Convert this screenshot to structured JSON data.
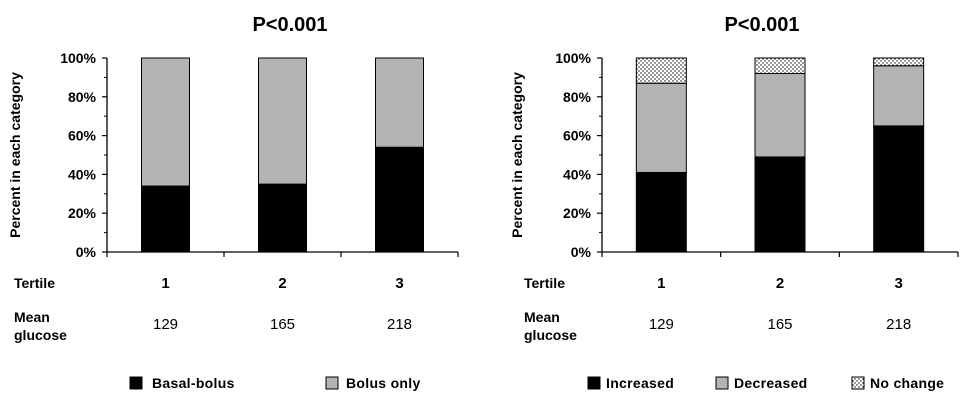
{
  "chart_data": [
    {
      "type": "bar",
      "stacked": true,
      "title": "P<0.001",
      "ylabel": "Percent in each category",
      "ylim": [
        0,
        100
      ],
      "yticks": [
        "0%",
        "20%",
        "40%",
        "60%",
        "80%",
        "100%"
      ],
      "row_label": "Tertile",
      "categories": [
        "1",
        "2",
        "3"
      ],
      "secondary_row_label": "Mean glucose",
      "secondary_row_label_lines": [
        "Mean",
        "glucose"
      ],
      "secondary_values": [
        "129",
        "165",
        "218"
      ],
      "series": [
        {
          "name": "Basal-bolus",
          "values": [
            34,
            35,
            54
          ],
          "color": "#000000",
          "pattern": "solid"
        },
        {
          "name": "Bolus only",
          "values": [
            66,
            65,
            46
          ],
          "color": "#b3b3b3",
          "pattern": "solid"
        }
      ],
      "legend": "bottom",
      "grid": false
    },
    {
      "type": "bar",
      "stacked": true,
      "title": "P<0.001",
      "ylabel": "Percent in each category",
      "ylim": [
        0,
        100
      ],
      "yticks": [
        "0%",
        "20%",
        "40%",
        "60%",
        "80%",
        "100%"
      ],
      "row_label": "Tertile",
      "categories": [
        "1",
        "2",
        "3"
      ],
      "secondary_row_label": "Mean glucose",
      "secondary_row_label_lines": [
        "Mean",
        "glucose"
      ],
      "secondary_values": [
        "129",
        "165",
        "218"
      ],
      "series": [
        {
          "name": "Increased",
          "values": [
            41,
            49,
            65
          ],
          "color": "#000000",
          "pattern": "solid"
        },
        {
          "name": "Decreased",
          "values": [
            46,
            43,
            31
          ],
          "color": "#b3b3b3",
          "pattern": "solid"
        },
        {
          "name": "No change",
          "values": [
            13,
            8,
            4
          ],
          "color": "#ffffff",
          "pattern": "dotted"
        }
      ],
      "legend": "bottom",
      "grid": false
    }
  ]
}
